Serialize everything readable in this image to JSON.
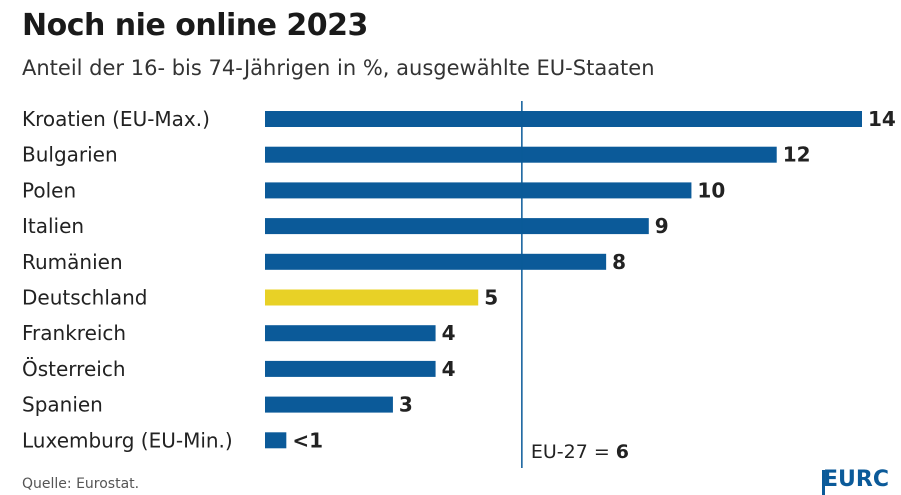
{
  "header": {
    "title": "Noch nie online 2023",
    "subtitle": "Anteil der 16- bis 74-Jährigen in %, ausgewählte EU-Staaten"
  },
  "footer": {
    "source": "Quelle: Eurostat.",
    "brand": "EURC"
  },
  "colors": {
    "bar_default": "#0b5a99",
    "bar_highlight": "#e8d126",
    "reference_line": "#0b5a99"
  },
  "chart_data": {
    "type": "bar",
    "orientation": "horizontal",
    "title": "Noch nie online 2023",
    "subtitle": "Anteil der 16- bis 74-Jährigen in %, ausgewählte EU-Staaten",
    "categories": [
      "Kroatien (EU-Max.)",
      "Bulgarien",
      "Polen",
      "Italien",
      "Rumänien",
      "Deutschland",
      "Frankreich",
      "Österreich",
      "Spanien",
      "Luxemburg (EU-Min.)"
    ],
    "values": [
      14,
      12,
      10,
      9,
      8,
      5,
      4,
      4,
      3,
      0.5
    ],
    "value_labels": [
      "14",
      "12",
      "10",
      "9",
      "8",
      "5",
      "4",
      "4",
      "3",
      "<1"
    ],
    "highlight": [
      "Deutschland"
    ],
    "reference": {
      "label": "EU-27 = ",
      "value": 6,
      "value_label": "6"
    },
    "xlim": [
      0,
      14
    ],
    "grid": false,
    "legend": "none"
  }
}
